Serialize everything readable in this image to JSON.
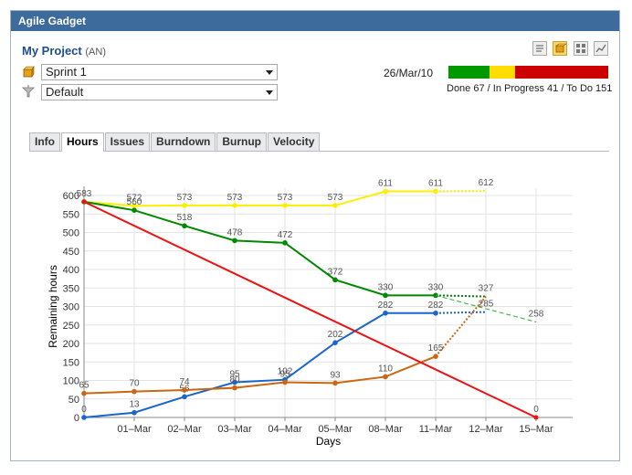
{
  "window": {
    "title": "Agile Gadget"
  },
  "project": {
    "name": "My Project",
    "key": "(AN)"
  },
  "toolbar": {
    "icons": [
      "text-view-icon",
      "sprint-box-icon",
      "grid-view-icon",
      "chart-view-icon"
    ]
  },
  "sprint_select": {
    "value": "Sprint 1",
    "icon": "sprint-box-icon"
  },
  "filter_select": {
    "value": "Default",
    "icon": "filter-funnel-icon"
  },
  "status": {
    "date": "26/Mar/10",
    "done": 67,
    "in_progress": 41,
    "todo": 151,
    "summary": "Done 67 / In Progress 41 / To Do 151",
    "colors": {
      "done": "#009900",
      "in_progress": "#ffdd00",
      "todo": "#cc0000"
    }
  },
  "tabs": [
    {
      "label": "Info",
      "active": false
    },
    {
      "label": "Hours",
      "active": true
    },
    {
      "label": "Issues",
      "active": false
    },
    {
      "label": "Burndown",
      "active": false
    },
    {
      "label": "Burnup",
      "active": false
    },
    {
      "label": "Velocity",
      "active": false
    }
  ],
  "chart_data": {
    "type": "line",
    "xlabel": "Days",
    "ylabel": "Remaining hours",
    "categories": [
      "",
      "01–Mar",
      "02–Mar",
      "03–Mar",
      "04–Mar",
      "05–Mar",
      "08–Mar",
      "11–Mar",
      "12–Mar",
      "15–Mar"
    ],
    "ylim": [
      0,
      600
    ],
    "yticks": [
      0,
      50,
      100,
      150,
      200,
      250,
      300,
      350,
      400,
      450,
      500,
      550,
      600
    ],
    "grid": true,
    "series": [
      {
        "color": "#ffee00",
        "values": [
          583,
          572,
          573,
          573,
          573,
          573,
          611,
          611,
          612,
          null
        ],
        "labels": [
          "583",
          "572",
          "573",
          "573",
          "573",
          "573",
          "611",
          "611",
          "612",
          ""
        ],
        "dotted_from": 7
      },
      {
        "color": "#008800",
        "values": [
          583,
          560,
          518,
          478,
          472,
          372,
          330,
          330,
          327,
          null
        ],
        "labels": [
          "",
          "560",
          "518",
          "478",
          "472",
          "372",
          "330",
          "330",
          "327",
          ""
        ],
        "dotted_from": 7
      },
      {
        "color": "#1a66cc",
        "values": [
          0,
          13,
          56,
          95,
          102,
          202,
          282,
          282,
          285,
          null
        ],
        "labels": [
          "0",
          "13",
          "56",
          "95",
          "102",
          "202",
          "282",
          "282",
          "285",
          ""
        ],
        "dotted_from": 7
      },
      {
        "color": "#cc6611",
        "values": [
          65,
          70,
          74,
          80,
          95,
          93,
          110,
          165,
          327,
          null
        ],
        "labels": [
          "65",
          "70",
          "74",
          "80",
          "95",
          "93",
          "110",
          "165",
          "",
          ""
        ],
        "dotted_from": 7
      },
      {
        "color": "#ee1111",
        "values": [
          583,
          null,
          null,
          null,
          null,
          null,
          null,
          null,
          null,
          0
        ],
        "labels": [
          "",
          "",
          "",
          "",
          "",
          "",
          "",
          "",
          "",
          "0"
        ],
        "ideal": true
      },
      {
        "color": "#33aa33",
        "values": [
          null,
          null,
          null,
          null,
          null,
          null,
          null,
          330,
          null,
          258
        ],
        "labels": [
          "",
          "",
          "",
          "",
          "",
          "",
          "",
          "",
          "",
          "258"
        ],
        "projection": true,
        "x_end": 9.0
      }
    ]
  }
}
